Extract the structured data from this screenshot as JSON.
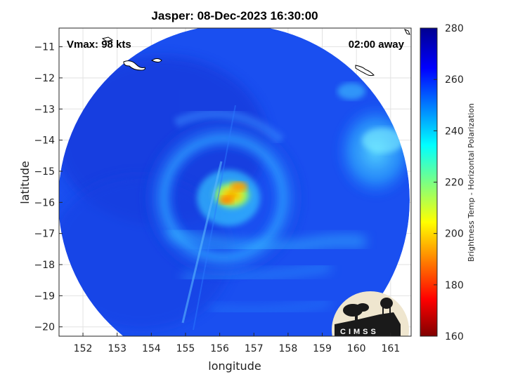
{
  "title": "Jasper: 08-Dec-2023 16:30:00",
  "annotations": {
    "vmax": "Vmax: 98 kts",
    "time_away": "02:00 away"
  },
  "axes": {
    "xlabel": "longitude",
    "ylabel": "latitude",
    "xticks": [
      "152",
      "153",
      "154",
      "155",
      "156",
      "157",
      "158",
      "159",
      "160",
      "161"
    ],
    "yticks": [
      "−11",
      "−12",
      "−13",
      "−14",
      "−15",
      "−16",
      "−17",
      "−18",
      "−19",
      "−20"
    ]
  },
  "colorbar": {
    "label": "Brightness Temp - Horizontal Polarization",
    "ticks": [
      "280",
      "260",
      "240",
      "220",
      "200",
      "180",
      "160"
    ],
    "range": [
      160,
      280
    ],
    "colormap": "jet"
  },
  "logo": {
    "text": "CIMSS"
  },
  "chart_data": {
    "type": "heatmap",
    "title": "Jasper: 08-Dec-2023 16:30:00",
    "xlabel": "longitude",
    "ylabel": "latitude",
    "xlim": [
      151.3,
      161.6
    ],
    "ylim": [
      -20.3,
      -10.4
    ],
    "colorbar_label": "Brightness Temp - Horizontal Polarization",
    "clim": [
      160,
      280
    ],
    "grid": true,
    "swath": "circular",
    "storm_center": {
      "lon": 156.2,
      "lat": -15.8
    },
    "features": [
      {
        "name": "warm core",
        "lon": 156.4,
        "lat": -15.8,
        "tb": 195
      },
      {
        "name": "eyewall ring",
        "lon": 156.2,
        "lat": -15.8,
        "tb": 240
      },
      {
        "name": "rainband",
        "lon": 160.5,
        "lat": -14.2,
        "tb": 238
      },
      {
        "name": "background ocean",
        "tb": 268
      }
    ]
  }
}
